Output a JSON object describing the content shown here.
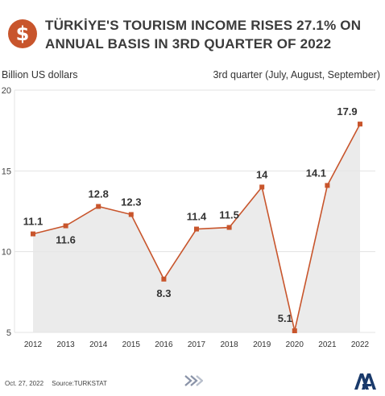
{
  "header": {
    "title": "TÜRKİYE'S TOURISM INCOME RISES 27.1% ON ANNUAL BASIS IN 3RD QUARTER OF 2022",
    "logo_glyph": "$"
  },
  "footer": {
    "date": "Oct. 27, 2022",
    "source": "Source:TURKSTAT"
  },
  "chart_data": {
    "type": "area",
    "title": "TÜRKİYE'S TOURISM INCOME RISES 27.1% ON ANNUAL BASIS IN 3RD QUARTER OF 2022",
    "ylabel": "Billion US dollars",
    "subtitle": "3rd quarter (July, August, September)",
    "categories": [
      "2012",
      "2013",
      "2014",
      "2015",
      "2016",
      "2017",
      "2018",
      "2019",
      "2020",
      "2021",
      "2022"
    ],
    "values": [
      11.1,
      11.6,
      12.8,
      12.3,
      8.3,
      11.4,
      11.5,
      14,
      5.1,
      14.1,
      17.9
    ],
    "value_labels": [
      "11.1",
      "11.6",
      "12.8",
      "12.3",
      "8.3",
      "11.4",
      "11.5",
      "14",
      "5.1",
      "14.1",
      "17.9"
    ],
    "ylim": [
      5,
      20
    ],
    "yticks": [
      5,
      10,
      15,
      20
    ],
    "grid": true,
    "line_color": "#c8552c",
    "area_color": "#e6e6e6"
  }
}
